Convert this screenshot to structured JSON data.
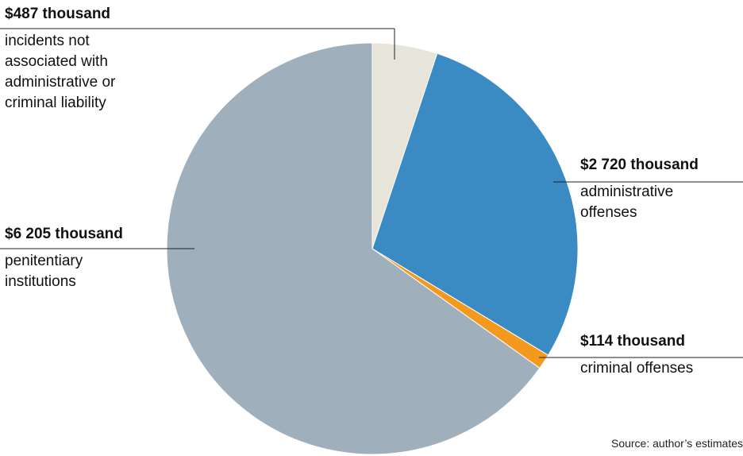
{
  "chart_data": {
    "type": "pie",
    "title": "",
    "slices": [
      {
        "value_label": "$487 thousand",
        "value": 487,
        "description_lines": [
          "incidents not",
          "associated with",
          "administrative or",
          "criminal liability"
        ],
        "color": "#e7e5da"
      },
      {
        "value_label": "$2 720 thousand",
        "value": 2720,
        "description_lines": [
          "administrative",
          "offenses"
        ],
        "color": "#3a8ac3"
      },
      {
        "value_label": "$114 thousand",
        "value": 114,
        "description_lines": [
          "criminal offenses"
        ],
        "color": "#f39a1e"
      },
      {
        "value_label": "$6 205 thousand",
        "value": 6205,
        "description_lines": [
          "penitentiary",
          "institutions"
        ],
        "color": "#a0afbc"
      }
    ],
    "units": "thousand USD"
  },
  "source_note": "Source: author’s estimates"
}
